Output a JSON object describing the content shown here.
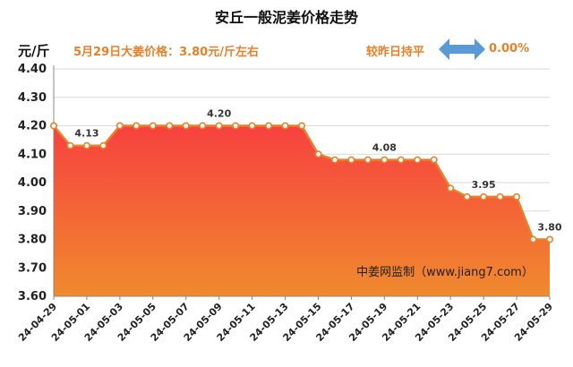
{
  "header": {
    "title": "安丘一般泥姜价格走势",
    "unit": "元/斤",
    "price_text": "5月29日大姜价格：3.80元/斤左右",
    "compare_label": "较昨日持平",
    "compare_value": "0.00%",
    "compare_icon": "double-arrow-icon",
    "accent_color": "#e8802a",
    "arrow_color": "#5b9bd5"
  },
  "chart_data": {
    "type": "area",
    "title": "安丘一般泥姜价格走势",
    "ylabel": "元/斤",
    "ylim": [
      3.6,
      4.4
    ],
    "yticks": [
      "3.60",
      "3.70",
      "3.80",
      "3.90",
      "4.00",
      "4.10",
      "4.20",
      "4.30",
      "4.40"
    ],
    "x": [
      "24-04-29",
      "24-04-30",
      "24-05-01",
      "24-05-02",
      "24-05-03",
      "24-05-04",
      "24-05-05",
      "24-05-06",
      "24-05-07",
      "24-05-08",
      "24-05-09",
      "24-05-10",
      "24-05-11",
      "24-05-12",
      "24-05-13",
      "24-05-14",
      "24-05-15",
      "24-05-16",
      "24-05-17",
      "24-05-18",
      "24-05-19",
      "24-05-20",
      "24-05-21",
      "24-05-22",
      "24-05-23",
      "24-05-24",
      "24-05-25",
      "24-05-26",
      "24-05-27",
      "24-05-28",
      "24-05-29"
    ],
    "xtick_labels": [
      "24-04-29",
      "24-05-01",
      "24-05-03",
      "24-05-05",
      "24-05-07",
      "24-05-09",
      "24-05-11",
      "24-05-13",
      "24-05-15",
      "24-05-17",
      "24-05-19",
      "24-05-21",
      "24-05-23",
      "24-05-25",
      "24-05-27",
      "24-05-29"
    ],
    "values": [
      4.2,
      4.13,
      4.13,
      4.13,
      4.2,
      4.2,
      4.2,
      4.2,
      4.2,
      4.2,
      4.2,
      4.2,
      4.2,
      4.2,
      4.2,
      4.2,
      4.1,
      4.08,
      4.08,
      4.08,
      4.08,
      4.08,
      4.08,
      4.08,
      3.98,
      3.95,
      3.95,
      3.95,
      3.95,
      3.8,
      3.8
    ],
    "data_labels": [
      {
        "index": 2,
        "text": "4.13"
      },
      {
        "index": 10,
        "text": "4.20"
      },
      {
        "index": 20,
        "text": "4.08"
      },
      {
        "index": 26,
        "text": "3.95"
      },
      {
        "index": 30,
        "text": "3.80"
      }
    ],
    "grid": true,
    "fill_colors": [
      "#f7413f",
      "#f08a2e"
    ],
    "line_color": "#e8802a",
    "watermark": "中姜网监制（www.jiang7.com）"
  }
}
